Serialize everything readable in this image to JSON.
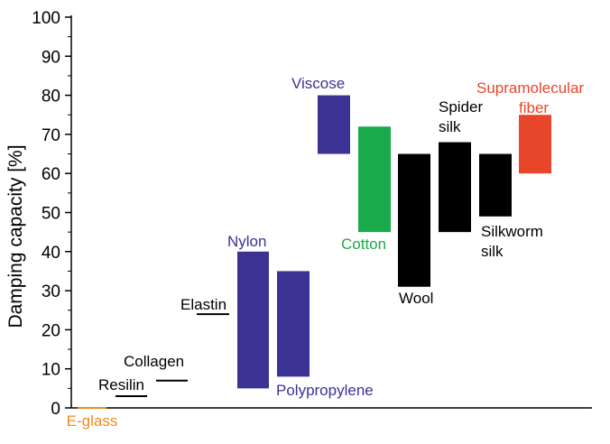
{
  "chart_data": {
    "type": "bar",
    "subtype": "floating-range",
    "title": "",
    "xlabel": "",
    "ylabel": "Damping capacity [%]",
    "ylim": [
      0,
      100
    ],
    "yticks": [
      0,
      10,
      20,
      30,
      40,
      50,
      60,
      70,
      80,
      90,
      100
    ],
    "grid": false,
    "legend": "none",
    "series": [
      {
        "label": [
          "E-glass"
        ],
        "low": 0,
        "high": 0,
        "color": "#ef8a1e"
      },
      {
        "label": [
          "Resilin"
        ],
        "low": 3,
        "high": 3,
        "color": "#000000"
      },
      {
        "label": [
          "Collagen"
        ],
        "low": 7,
        "high": 7,
        "color": "#000000"
      },
      {
        "label": [
          "Elastin"
        ],
        "low": 24,
        "high": 24,
        "color": "#000000"
      },
      {
        "label": [
          "Nylon"
        ],
        "low": 5,
        "high": 40,
        "color": "#3a3394"
      },
      {
        "label": [
          "Polypropylene"
        ],
        "low": 8,
        "high": 35,
        "color": "#3a3394"
      },
      {
        "label": [
          "Viscose"
        ],
        "low": 65,
        "high": 80,
        "color": "#3a3394"
      },
      {
        "label": [
          "Cotton"
        ],
        "low": 45,
        "high": 72,
        "color": "#1aaa4b"
      },
      {
        "label": [
          "Wool"
        ],
        "low": 31,
        "high": 65,
        "color": "#000000"
      },
      {
        "label": [
          "Spider",
          "silk"
        ],
        "low": 45,
        "high": 68,
        "color": "#000000"
      },
      {
        "label": [
          "Silkworm",
          "silk"
        ],
        "low": 49,
        "high": 65,
        "color": "#000000"
      },
      {
        "label": [
          "Supramolecular",
          "fiber"
        ],
        "low": 60,
        "high": 75,
        "color": "#e8462a"
      }
    ]
  }
}
